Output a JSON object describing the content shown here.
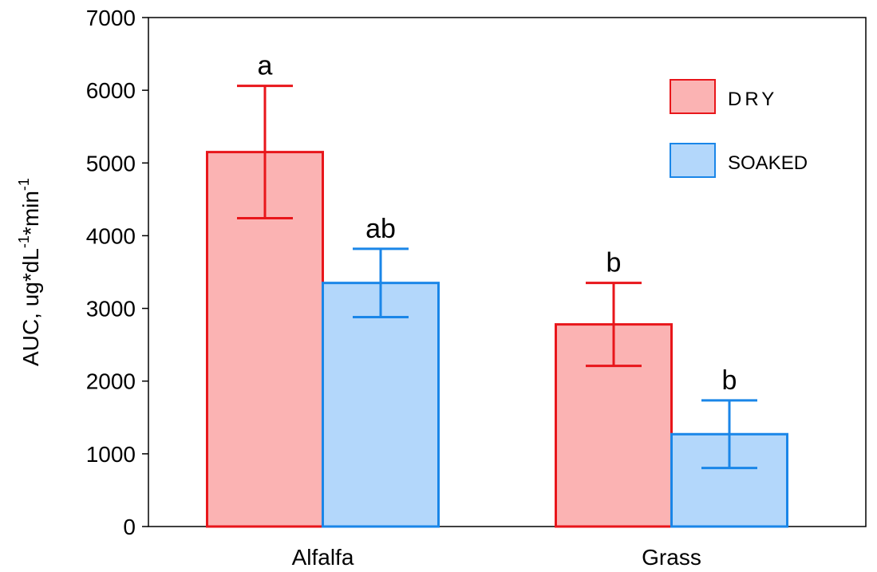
{
  "chart_data": {
    "type": "bar",
    "ylabel": [
      "AUC, ug*dL",
      "-1",
      "*min",
      "-1"
    ],
    "categories": [
      "Alfalfa",
      "Grass"
    ],
    "series": [
      {
        "name": "DRY",
        "color": "#e8161b",
        "fill": "#fbb3b3",
        "values": [
          5150,
          2780
        ],
        "errors": [
          910,
          570
        ],
        "sig_labels": [
          "a",
          "b"
        ]
      },
      {
        "name": "SOAKED",
        "color": "#1a86e8",
        "fill": "#b3d7fb",
        "values": [
          3350,
          1270
        ],
        "errors": [
          470,
          465
        ],
        "sig_labels": [
          "ab",
          "b"
        ]
      }
    ],
    "ylim": [
      0,
      7000
    ],
    "yticks": [
      0,
      1000,
      2000,
      3000,
      4000,
      5000,
      6000,
      7000
    ],
    "legend": "upper right"
  }
}
